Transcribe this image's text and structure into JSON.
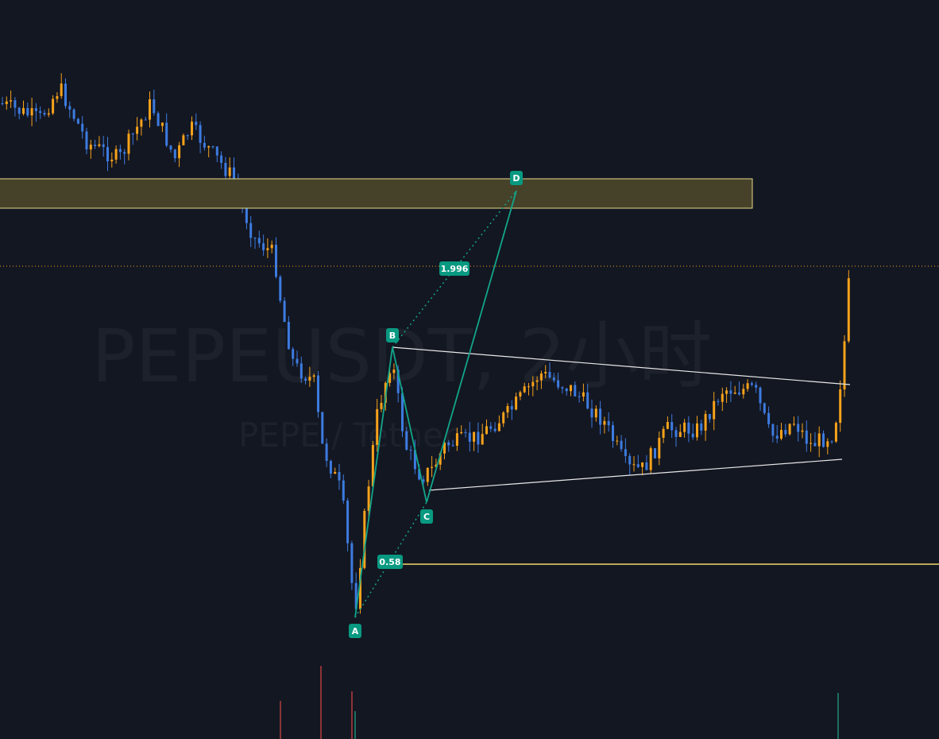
{
  "watermark": {
    "title": "PEPEUSDT, 2小时",
    "subtitle": "PEPE / Tether"
  },
  "pattern": {
    "points": [
      "A",
      "B",
      "C",
      "D"
    ],
    "ratios": [
      "1.996",
      "0.58"
    ]
  }
}
